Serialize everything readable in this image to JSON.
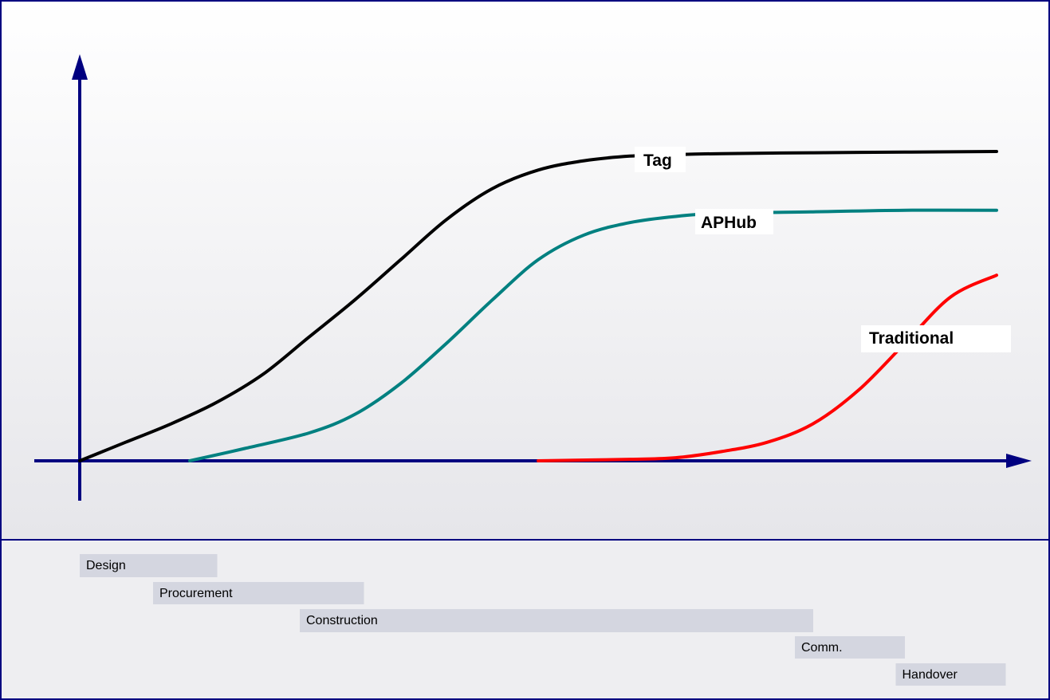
{
  "chart_data": {
    "type": "line",
    "title": "",
    "xlabel": "",
    "ylabel": "",
    "grid": false,
    "series": [
      {
        "name": "Tag",
        "color": "#000000",
        "points": [
          [
            0,
            0
          ],
          [
            0.05,
            0.06
          ],
          [
            0.1,
            0.12
          ],
          [
            0.15,
            0.19
          ],
          [
            0.2,
            0.28
          ],
          [
            0.25,
            0.4
          ],
          [
            0.3,
            0.52
          ],
          [
            0.35,
            0.65
          ],
          [
            0.4,
            0.78
          ],
          [
            0.45,
            0.88
          ],
          [
            0.5,
            0.94
          ],
          [
            0.55,
            0.97
          ],
          [
            0.6,
            0.985
          ],
          [
            0.65,
            0.99
          ],
          [
            0.7,
            0.993
          ],
          [
            0.8,
            0.996
          ],
          [
            0.9,
            0.998
          ],
          [
            1.0,
            1.0
          ]
        ]
      },
      {
        "name": "APHub",
        "color": "#008080",
        "points": [
          [
            0.12,
            0
          ],
          [
            0.18,
            0.04
          ],
          [
            0.25,
            0.09
          ],
          [
            0.3,
            0.15
          ],
          [
            0.35,
            0.25
          ],
          [
            0.4,
            0.38
          ],
          [
            0.45,
            0.52
          ],
          [
            0.5,
            0.65
          ],
          [
            0.55,
            0.73
          ],
          [
            0.6,
            0.77
          ],
          [
            0.65,
            0.79
          ],
          [
            0.7,
            0.8
          ],
          [
            0.8,
            0.805
          ],
          [
            0.9,
            0.81
          ],
          [
            1.0,
            0.81
          ]
        ]
      },
      {
        "name": "Traditional",
        "color": "#ff0000",
        "points": [
          [
            0.5,
            0
          ],
          [
            0.6,
            0.005
          ],
          [
            0.65,
            0.01
          ],
          [
            0.7,
            0.03
          ],
          [
            0.75,
            0.06
          ],
          [
            0.8,
            0.12
          ],
          [
            0.85,
            0.23
          ],
          [
            0.9,
            0.38
          ],
          [
            0.95,
            0.53
          ],
          [
            1.0,
            0.6
          ]
        ]
      }
    ],
    "phases": [
      {
        "label": "Design",
        "start": 0.0,
        "end": 0.15
      },
      {
        "label": "Procurement",
        "start": 0.08,
        "end": 0.31
      },
      {
        "label": "Construction",
        "start": 0.24,
        "end": 0.8
      },
      {
        "label": "Comm.",
        "start": 0.78,
        "end": 0.9
      },
      {
        "label": "Handover",
        "start": 0.89,
        "end": 1.01
      }
    ],
    "colors": {
      "frame": "#000080",
      "axis": "#000080",
      "phase_bar": "#d4d6e0"
    }
  }
}
